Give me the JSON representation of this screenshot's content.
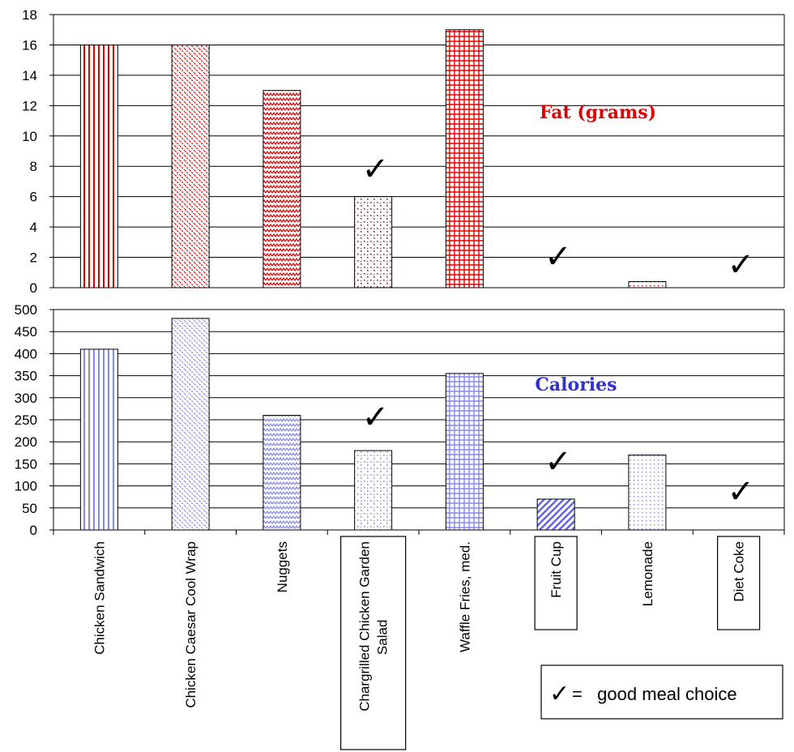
{
  "chart_data": {
    "type": "bar",
    "categories": [
      "Chicken Sandwich",
      "Chicken Caesar Cool Wrap",
      "Nuggets",
      "Chargrilled Chicken Garden Salad",
      "Waffle Fries, med.",
      "Fruit Cup",
      "Lemonade",
      "Diet Coke"
    ],
    "panels": [
      {
        "name": "Fat (grams)",
        "color": "#e00000",
        "values": [
          16,
          16,
          13,
          6,
          17,
          0,
          0.4,
          0
        ],
        "ylim": [
          0,
          18
        ],
        "ticks": [
          0,
          2,
          4,
          6,
          8,
          10,
          12,
          14,
          16,
          18
        ]
      },
      {
        "name": "Calories",
        "color": "#3333cc",
        "values": [
          410,
          480,
          260,
          180,
          355,
          70,
          170,
          0
        ],
        "ylim": [
          0,
          500
        ],
        "ticks": [
          0,
          50,
          100,
          150,
          200,
          250,
          300,
          350,
          400,
          450,
          500
        ]
      }
    ],
    "good_choice_indices": [
      3,
      5,
      7
    ],
    "legend_symbol": "✓",
    "legend": "=   good meal choice",
    "bar_color_fat": "#e00000",
    "bar_color_cal": "#5555dd",
    "grid": true,
    "legend_placement": "bottom-right"
  }
}
